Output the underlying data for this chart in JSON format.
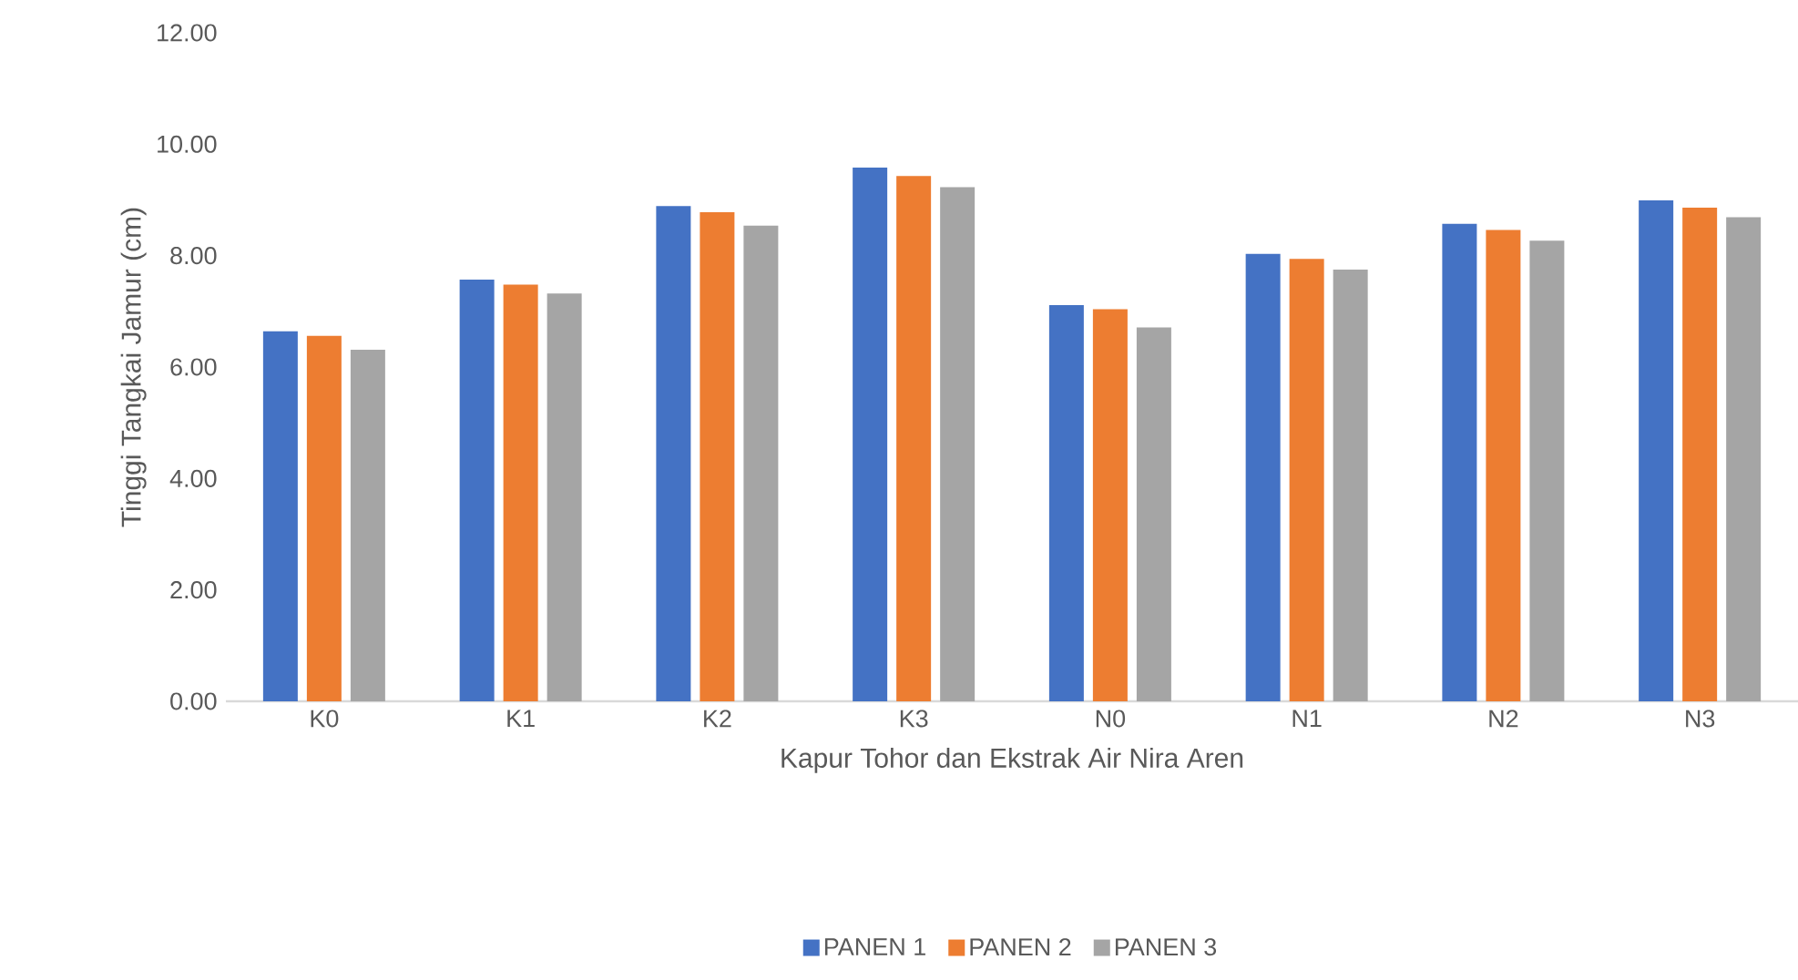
{
  "chart_data": {
    "type": "bar",
    "xlabel": "Kapur Tohor dan Ekstrak Air Nira Aren",
    "ylabel": "Tinggi Tangkai Jamur (cm)",
    "categories": [
      "K0",
      "K1",
      "K2",
      "K3",
      "N0",
      "N1",
      "N2",
      "N3"
    ],
    "series": [
      {
        "name": "PANEN 1",
        "color": "#4472c4",
        "values": [
          6.64,
          7.57,
          8.89,
          9.58,
          7.11,
          8.03,
          8.57,
          8.99
        ]
      },
      {
        "name": "PANEN 2",
        "color": "#ed7d31",
        "values": [
          6.56,
          7.48,
          8.78,
          9.43,
          7.04,
          7.94,
          8.46,
          8.86
        ]
      },
      {
        "name": "PANEN 3",
        "color": "#a5a5a5",
        "values": [
          6.31,
          7.32,
          8.54,
          9.23,
          6.71,
          7.75,
          8.27,
          8.69
        ]
      }
    ],
    "ylim": [
      0,
      12
    ],
    "yticks": [
      {
        "value": 0,
        "label": "0.00"
      },
      {
        "value": 2,
        "label": "2.00"
      },
      {
        "value": 4,
        "label": "4.00"
      },
      {
        "value": 6,
        "label": "6.00"
      },
      {
        "value": 8,
        "label": "8.00"
      },
      {
        "value": 10,
        "label": "10.00"
      },
      {
        "value": 12,
        "label": "12.00"
      }
    ],
    "grid": false,
    "legend": "bottom"
  }
}
